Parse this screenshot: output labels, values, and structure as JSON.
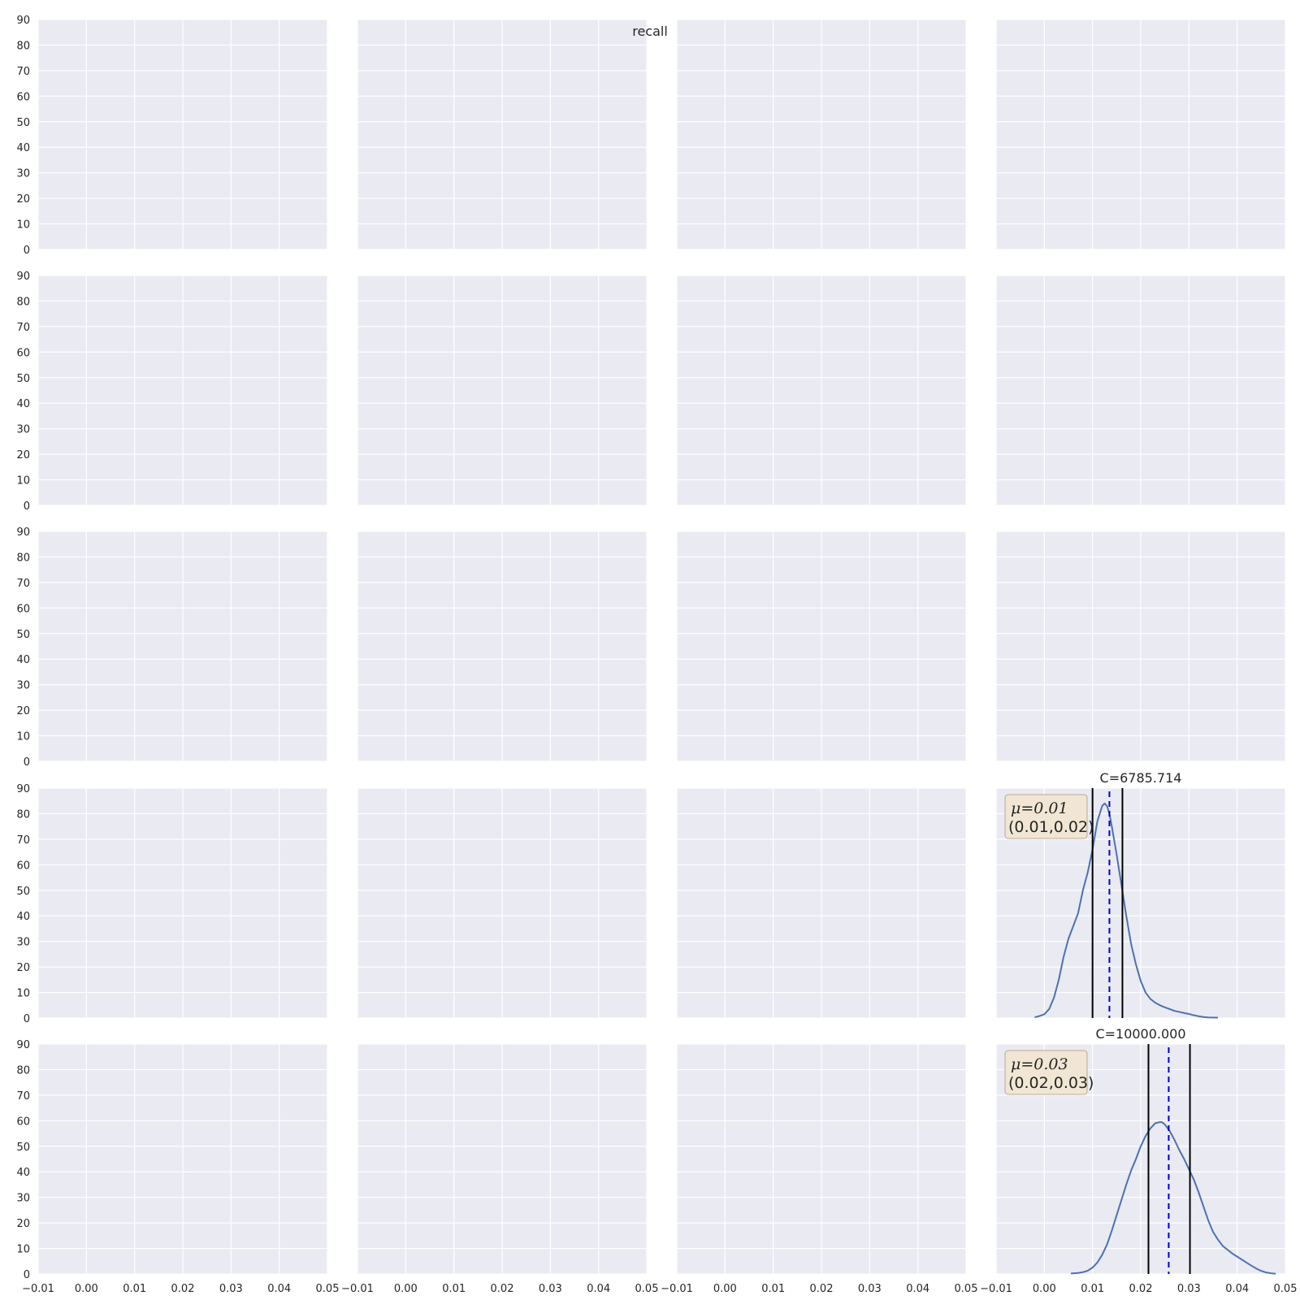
{
  "chart_data": {
    "type": "grid",
    "suptitle": "recall",
    "rows": 5,
    "cols": 4,
    "xlim": [
      -0.01,
      0.05
    ],
    "ylim": [
      0,
      90
    ],
    "xticks": [
      -0.01,
      0.0,
      0.01,
      0.02,
      0.03,
      0.04,
      0.05
    ],
    "xtick_labels": [
      "−0.01",
      "0.00",
      "0.01",
      "0.02",
      "0.03",
      "0.04",
      "0.05"
    ],
    "yticks": [
      0,
      10,
      20,
      30,
      40,
      50,
      60,
      70,
      80,
      90
    ],
    "ytick_labels": [
      "0",
      "10",
      "20",
      "30",
      "40",
      "50",
      "60",
      "70",
      "80",
      "90"
    ],
    "grid": true,
    "colors": {
      "axes_bg": "#eaeaf2",
      "grid": "#ffffff",
      "kde": "#4c72b0",
      "mean_line": "#0000cc",
      "ci_line": "#000000",
      "box_bg": "#f1e6d4",
      "box_edge": "#b8a98f"
    },
    "panels": [
      {
        "row": 3,
        "col": 3,
        "title": "C=6785.714",
        "type": "line",
        "mean": 0.0135,
        "ci": [
          0.01,
          0.0162
        ],
        "box_line1": "μ=0.01",
        "box_line2": "(0.01,0.02)",
        "series": {
          "x": [
            -0.002,
            -0.001,
            0.0,
            0.001,
            0.002,
            0.003,
            0.004,
            0.005,
            0.006,
            0.007,
            0.008,
            0.009,
            0.01,
            0.011,
            0.012,
            0.0125,
            0.013,
            0.0135,
            0.014,
            0.015,
            0.016,
            0.017,
            0.018,
            0.019,
            0.02,
            0.021,
            0.022,
            0.023,
            0.024,
            0.025,
            0.026,
            0.027,
            0.028,
            0.029,
            0.03,
            0.031,
            0.032,
            0.033,
            0.034,
            0.035,
            0.036
          ],
          "y": [
            0.3,
            0.8,
            1.5,
            3.5,
            8,
            15,
            24,
            31,
            36,
            41,
            50,
            57,
            66,
            77,
            83,
            84,
            83,
            80,
            75,
            64,
            52,
            40,
            29,
            21,
            14.5,
            10,
            7.5,
            6,
            5,
            4.2,
            3.5,
            2.8,
            2.4,
            2.0,
            1.6,
            1.1,
            0.7,
            0.4,
            0.25,
            0.2,
            0.15
          ]
        }
      },
      {
        "row": 4,
        "col": 3,
        "title": "C=10000.000",
        "type": "line",
        "mean": 0.0258,
        "ci": [
          0.0216,
          0.0302
        ],
        "box_line1": "μ=0.03",
        "box_line2": "(0.02,0.03)",
        "series": {
          "x": [
            0.0055,
            0.007,
            0.008,
            0.009,
            0.01,
            0.011,
            0.012,
            0.013,
            0.014,
            0.015,
            0.016,
            0.017,
            0.018,
            0.019,
            0.02,
            0.021,
            0.022,
            0.023,
            0.024,
            0.0245,
            0.025,
            0.026,
            0.027,
            0.028,
            0.029,
            0.03,
            0.031,
            0.032,
            0.033,
            0.034,
            0.035,
            0.036,
            0.037,
            0.038,
            0.039,
            0.04,
            0.041,
            0.042,
            0.043,
            0.044,
            0.045,
            0.046,
            0.047,
            0.048
          ],
          "y": [
            0.2,
            0.4,
            0.7,
            1.3,
            2.5,
            4.5,
            7.5,
            11.5,
            17,
            23,
            29,
            35,
            40.5,
            45,
            50,
            54,
            57,
            59,
            59.5,
            59.3,
            58.5,
            56,
            52.5,
            48.5,
            45,
            41,
            37,
            32,
            26.5,
            21,
            16.5,
            13.5,
            11,
            9.5,
            8,
            6.8,
            5.6,
            4.4,
            3.2,
            2.1,
            1.2,
            0.6,
            0.3,
            0.1
          ]
        }
      }
    ]
  }
}
